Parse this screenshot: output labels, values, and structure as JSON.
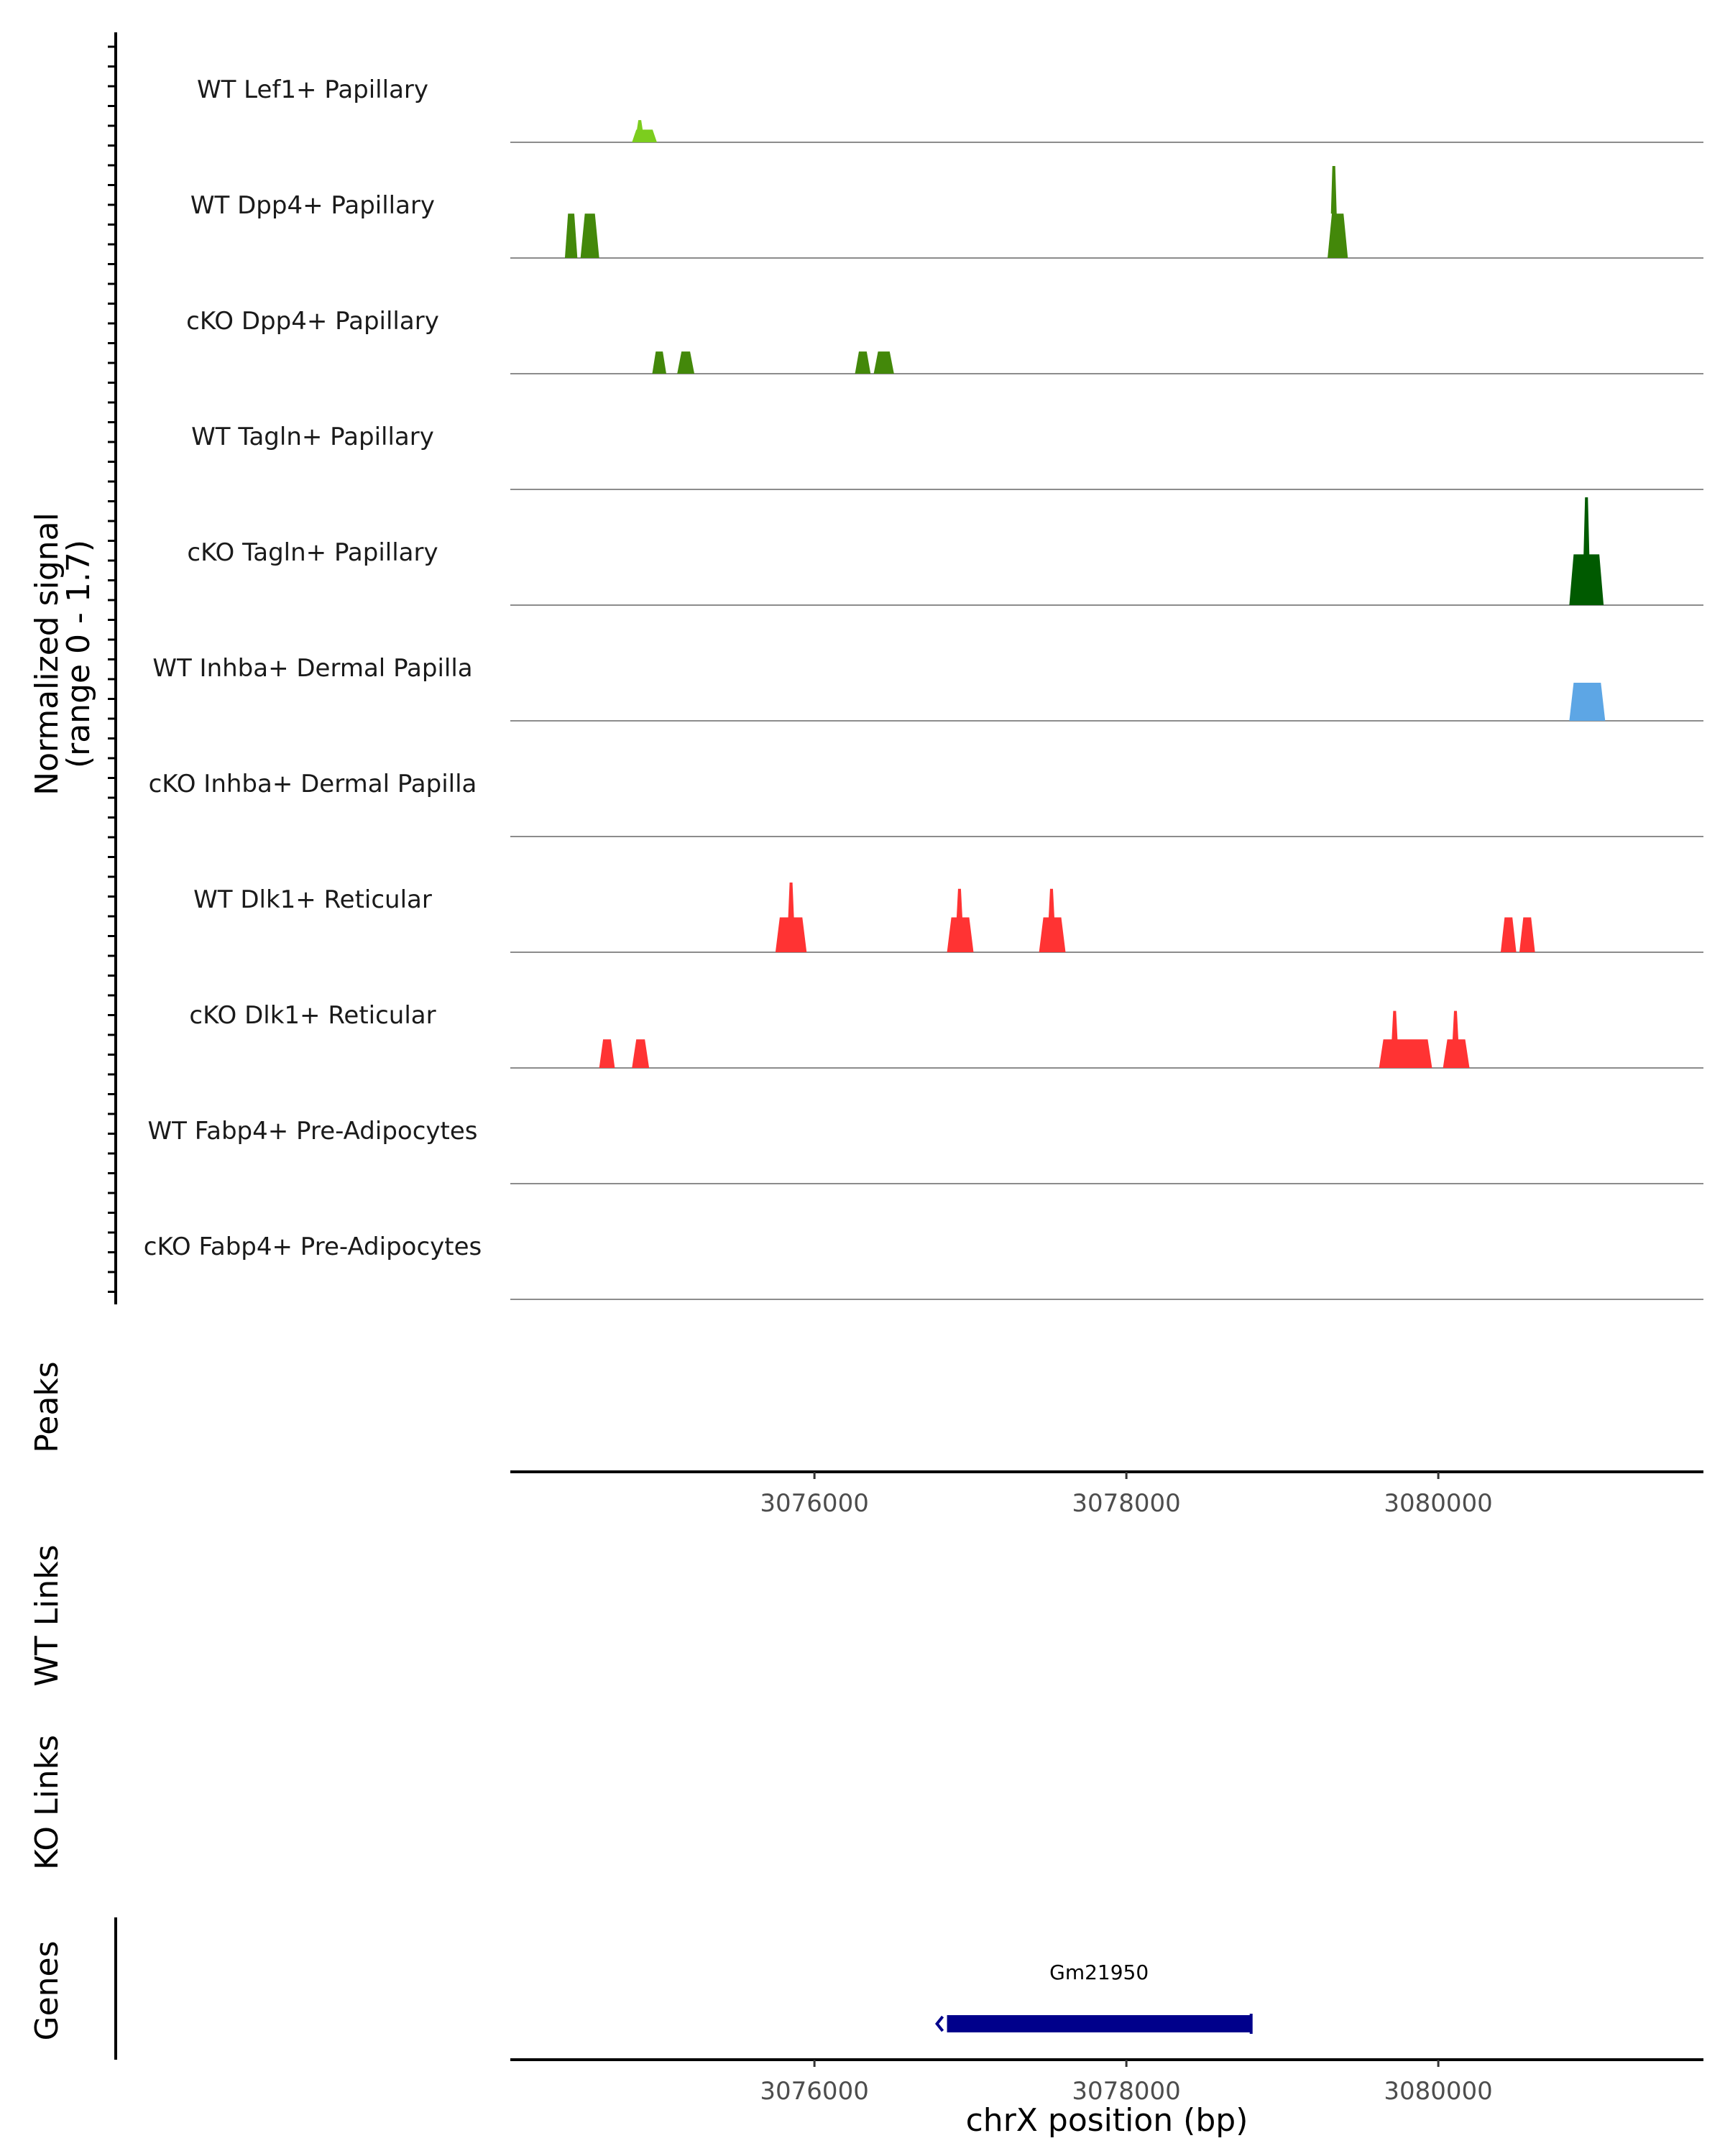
{
  "chart_data": {
    "type": "area",
    "title": "",
    "ylabel_line1": "Normalized signal",
    "ylabel_line2": "(range 0 - 1.7)",
    "ylim": [
      0,
      1.7
    ],
    "xlabel": "chrX position (bp)",
    "xlim": [
      3074050,
      3081700
    ],
    "xticks": [
      3076000,
      3078000,
      3080000
    ],
    "xtick_labels": [
      "3076000",
      "3078000",
      "3080000"
    ],
    "tracks": [
      {
        "name": "WT Lef1+ Papillary",
        "color": "#7CCD1E",
        "peaks": [
          {
            "start": 3074830,
            "end": 3074990,
            "height": 0.2,
            "summit": 3074880,
            "summit_height": 0.35
          }
        ]
      },
      {
        "name": "WT Dpp4+ Papillary",
        "color": "#43880A",
        "peaks": [
          {
            "start": 3074400,
            "end": 3074480,
            "height": 0.7
          },
          {
            "start": 3074500,
            "end": 3074620,
            "height": 0.7
          },
          {
            "start": 3079290,
            "end": 3079420,
            "height": 0.7,
            "summit": 3079330,
            "summit_height": 1.45
          }
        ]
      },
      {
        "name": "cKO Dpp4+ Papillary",
        "color": "#43880A",
        "peaks": [
          {
            "start": 3074960,
            "end": 3075050,
            "height": 0.35
          },
          {
            "start": 3075120,
            "end": 3075230,
            "height": 0.35
          },
          {
            "start": 3076260,
            "end": 3076360,
            "height": 0.35
          },
          {
            "start": 3076380,
            "end": 3076510,
            "height": 0.35
          }
        ]
      },
      {
        "name": "WT Tagln+ Papillary",
        "color": "#005A00",
        "peaks": []
      },
      {
        "name": "cKO Tagln+ Papillary",
        "color": "#005A00",
        "peaks": [
          {
            "start": 3080840,
            "end": 3081060,
            "height": 0.8,
            "summit": 3080950,
            "summit_height": 1.7
          }
        ]
      },
      {
        "name": "WT Inhba+ Dermal Papilla",
        "color": "#5DA6E5",
        "peaks": [
          {
            "start": 3080840,
            "end": 3081070,
            "height": 0.6
          }
        ]
      },
      {
        "name": "cKO Inhba+ Dermal Papilla",
        "color": "#5DA6E5",
        "peaks": []
      },
      {
        "name": "WT Dlk1+ Reticular",
        "color": "#FF3333",
        "peaks": [
          {
            "start": 3075750,
            "end": 3075950,
            "height": 0.55,
            "summit": 3075850,
            "summit_height": 1.1
          },
          {
            "start": 3076850,
            "end": 3077020,
            "height": 0.55,
            "summit": 3076930,
            "summit_height": 1.0
          },
          {
            "start": 3077440,
            "end": 3077610,
            "height": 0.55,
            "summit": 3077520,
            "summit_height": 1.0
          },
          {
            "start": 3080400,
            "end": 3080500,
            "height": 0.55
          },
          {
            "start": 3080520,
            "end": 3080620,
            "height": 0.55
          }
        ]
      },
      {
        "name": "cKO Dlk1+ Reticular",
        "color": "#FF3333",
        "peaks": [
          {
            "start": 3074620,
            "end": 3074720,
            "height": 0.45
          },
          {
            "start": 3074830,
            "end": 3074940,
            "height": 0.45
          },
          {
            "start": 3079620,
            "end": 3079960,
            "height": 0.45,
            "summit": 3079720,
            "summit_height": 0.9
          },
          {
            "start": 3080030,
            "end": 3080200,
            "height": 0.45,
            "summit": 3080110,
            "summit_height": 0.9
          }
        ]
      },
      {
        "name": "WT Fabp4+ Pre-Adipocytes",
        "color": "#E6A100",
        "peaks": []
      },
      {
        "name": "cKO Fabp4+ Pre-Adipocytes",
        "color": "#E6A100",
        "peaks": []
      }
    ],
    "panels": {
      "peaks_label": "Peaks",
      "wt_links_label": "WT Links",
      "ko_links_label": "KO Links",
      "genes_label": "Genes"
    },
    "genes": [
      {
        "name": "Gm21950",
        "start": 3076850,
        "end": 3078800,
        "strand": "-",
        "color": "#00008B"
      }
    ]
  }
}
